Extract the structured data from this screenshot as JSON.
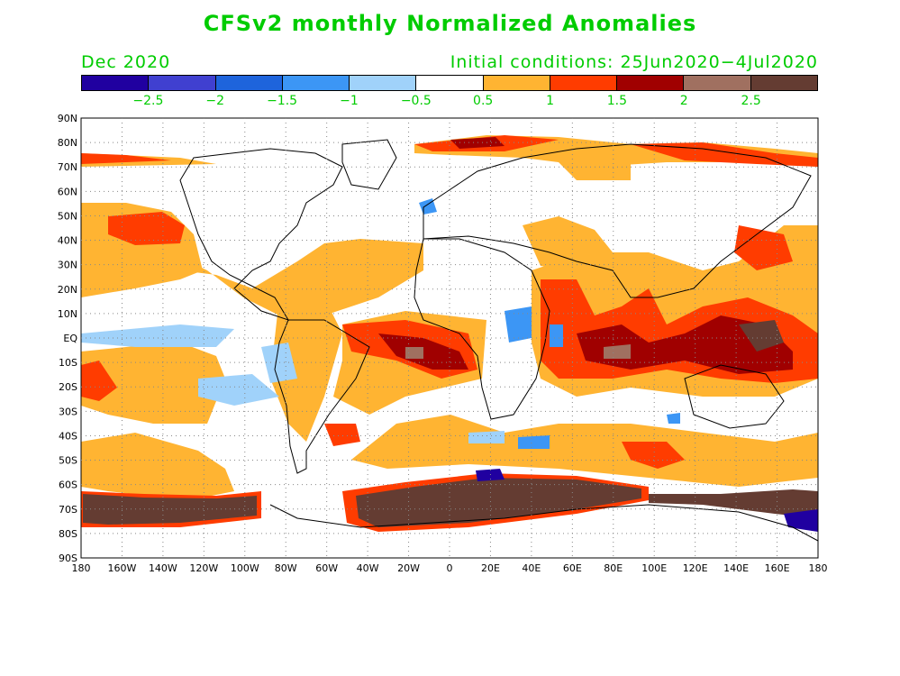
{
  "title": "CFSv2 monthly Normalized Anomalies",
  "month": "Dec 2020",
  "initial_conditions": "Initial conditions: 25Jun2020−4Jul2020",
  "text_color": "#00cc00",
  "colorbar": {
    "colors": [
      "#2000a0",
      "#4040d0",
      "#1e64dc",
      "#3c96f5",
      "#a0d2fa",
      "#ffffff",
      "#ffb432",
      "#ff3c00",
      "#a00000",
      "#a07060",
      "#643c32"
    ],
    "labels": [
      "−2.5",
      "−2",
      "−1.5",
      "−1",
      "−0.5",
      "0.5",
      "1",
      "1.5",
      "2",
      "2.5"
    ]
  },
  "map": {
    "lat_labels": [
      "90N",
      "80N",
      "70N",
      "60N",
      "50N",
      "40N",
      "30N",
      "20N",
      "10N",
      "EQ",
      "10S",
      "20S",
      "30S",
      "40S",
      "50S",
      "60S",
      "70S",
      "80S",
      "90S"
    ],
    "lon_labels": [
      "180",
      "160W",
      "140W",
      "120W",
      "100W",
      "80W",
      "60W",
      "40W",
      "20W",
      "0",
      "20E",
      "40E",
      "60E",
      "80E",
      "100E",
      "120E",
      "140E",
      "160E",
      "180"
    ]
  }
}
